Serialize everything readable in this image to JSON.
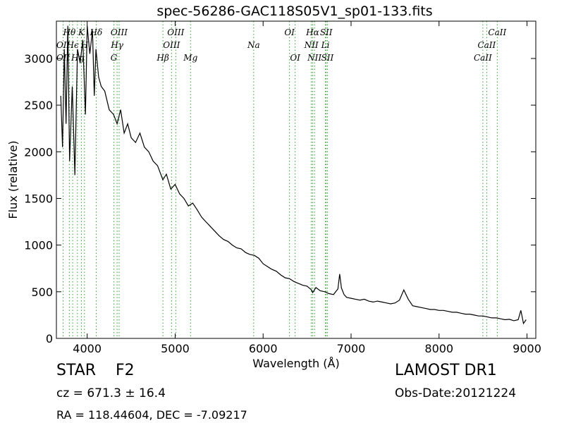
{
  "chart_data": {
    "type": "line",
    "title": "spec-56286-GAC118S05V1_sp01-133.fits",
    "xlabel": "Wavelength (Å)",
    "ylabel": "Flux (relative)",
    "xlim": [
      3650,
      9100
    ],
    "ylim": [
      0,
      3400
    ],
    "x_ticks": [
      4000,
      5000,
      6000,
      7000,
      8000,
      9000
    ],
    "y_ticks": [
      0,
      500,
      1000,
      1500,
      2000,
      2500,
      3000
    ],
    "grid": false,
    "series": [
      {
        "color": "#000000",
        "x": [
          3700,
          3720,
          3740,
          3760,
          3780,
          3800,
          3830,
          3860,
          3890,
          3920,
          3950,
          3980,
          4000,
          4030,
          4060,
          4080,
          4100,
          4130,
          4160,
          4200,
          4250,
          4300,
          4340,
          4380,
          4420,
          4460,
          4500,
          4550,
          4600,
          4650,
          4700,
          4750,
          4800,
          4860,
          4900,
          4950,
          5000,
          5050,
          5100,
          5150,
          5200,
          5250,
          5300,
          5350,
          5400,
          5450,
          5500,
          5550,
          5600,
          5650,
          5700,
          5750,
          5800,
          5850,
          5900,
          5950,
          6000,
          6050,
          6100,
          6150,
          6200,
          6250,
          6300,
          6350,
          6400,
          6450,
          6500,
          6550,
          6563,
          6600,
          6650,
          6700,
          6750,
          6800,
          6850,
          6870,
          6890,
          6920,
          6950,
          7000,
          7050,
          7100,
          7150,
          7200,
          7250,
          7300,
          7350,
          7400,
          7450,
          7500,
          7550,
          7600,
          7620,
          7650,
          7700,
          7750,
          7800,
          7850,
          7900,
          7950,
          8000,
          8050,
          8100,
          8150,
          8200,
          8250,
          8300,
          8350,
          8400,
          8450,
          8500,
          8550,
          8600,
          8650,
          8700,
          8750,
          8800,
          8850,
          8900,
          8930,
          8960,
          8990
        ],
        "values": [
          2600,
          2050,
          3100,
          2300,
          3350,
          1900,
          2700,
          1750,
          3100,
          2950,
          3200,
          2400,
          3350,
          3050,
          3300,
          2600,
          3100,
          2800,
          2700,
          2650,
          2450,
          2400,
          2300,
          2450,
          2200,
          2300,
          2150,
          2100,
          2200,
          2050,
          2000,
          1900,
          1850,
          1700,
          1760,
          1600,
          1650,
          1550,
          1500,
          1420,
          1450,
          1380,
          1300,
          1250,
          1200,
          1150,
          1100,
          1060,
          1040,
          1000,
          970,
          960,
          920,
          900,
          890,
          860,
          800,
          770,
          740,
          720,
          680,
          650,
          640,
          610,
          590,
          570,
          560,
          520,
          490,
          545,
          510,
          500,
          480,
          470,
          530,
          690,
          540,
          470,
          440,
          430,
          420,
          410,
          420,
          400,
          390,
          400,
          390,
          380,
          370,
          380,
          410,
          520,
          480,
          420,
          350,
          340,
          330,
          320,
          310,
          310,
          300,
          300,
          290,
          280,
          280,
          270,
          260,
          260,
          250,
          240,
          240,
          230,
          220,
          220,
          210,
          200,
          205,
          190,
          200,
          300,
          160,
          200
        ]
      }
    ],
    "line_color": "#2ca02c",
    "spectral_lines": [
      {
        "label": "Hθ",
        "x": 3797,
        "row": 1
      },
      {
        "label": "OII",
        "x": 3727,
        "row": 2
      },
      {
        "label": "OII",
        "x": 3727,
        "row": 3
      },
      {
        "label": "Hϵ",
        "x": 3835,
        "row": 2
      },
      {
        "label": "Hη",
        "x": 3889,
        "row": 3
      },
      {
        "label": "K",
        "x": 3934,
        "row": 1
      },
      {
        "label": "H",
        "x": 3969,
        "row": 2
      },
      {
        "label": "Hδ",
        "x": 4102,
        "row": 1
      },
      {
        "label": "OIII",
        "x": 4363,
        "row": 1
      },
      {
        "label": "Hγ",
        "x": 4340,
        "row": 2
      },
      {
        "label": "G",
        "x": 4304,
        "row": 3
      },
      {
        "label": "OIII",
        "x": 5007,
        "row": 1
      },
      {
        "label": "OIII",
        "x": 4959,
        "row": 2
      },
      {
        "label": "Hβ",
        "x": 4861,
        "row": 3
      },
      {
        "label": "Mg",
        "x": 5175,
        "row": 3
      },
      {
        "label": "Na",
        "x": 5893,
        "row": 2
      },
      {
        "label": "OI",
        "x": 6300,
        "row": 1
      },
      {
        "label": "OI",
        "x": 6364,
        "row": 3
      },
      {
        "label": "Hα",
        "x": 6563,
        "row": 1
      },
      {
        "label": "NII",
        "x": 6548,
        "row": 2
      },
      {
        "label": "NII",
        "x": 6584,
        "row": 3
      },
      {
        "label": "SII",
        "x": 6717,
        "row": 1
      },
      {
        "label": "Li",
        "x": 6708,
        "row": 2
      },
      {
        "label": "SII",
        "x": 6731,
        "row": 3
      },
      {
        "label": "CaII",
        "x": 8662,
        "row": 1
      },
      {
        "label": "CaII",
        "x": 8542,
        "row": 2
      },
      {
        "label": "CaII",
        "x": 8498,
        "row": 3
      }
    ]
  },
  "info": {
    "object_class": "STAR",
    "subclass": "F2",
    "redshift_text": "cz = 671.3 ± 16.4",
    "coords_text": "RA = 118.44604, DEC = -7.09217",
    "survey": "LAMOST DR1",
    "obs_date": "Obs-Date:20121224"
  }
}
